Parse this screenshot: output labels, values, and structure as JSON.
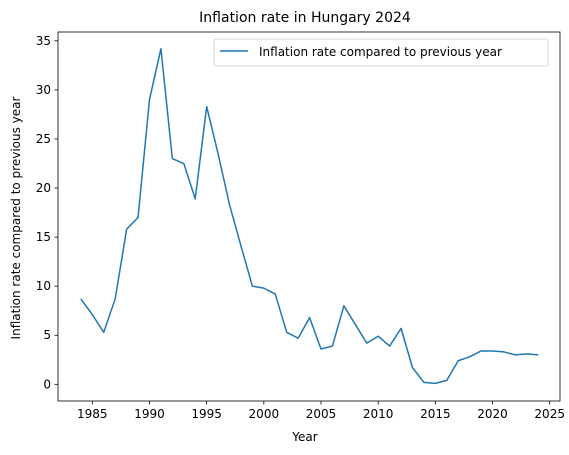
{
  "chart_data": {
    "type": "line",
    "title": "Inflation rate in Hungary 2024",
    "xlabel": "Year",
    "ylabel": "Inflation rate compared to previous year",
    "xlim": [
      1982,
      2025.9
    ],
    "ylim": [
      -1.7,
      35.9
    ],
    "xticks": [
      1985,
      1990,
      1995,
      2000,
      2005,
      2010,
      2015,
      2020,
      2025
    ],
    "yticks": [
      0,
      5,
      10,
      15,
      20,
      25,
      30,
      35
    ],
    "grid": false,
    "legend_position": "upper right",
    "series": [
      {
        "name": "Inflation rate compared to previous year",
        "color": "#1f77b4",
        "x": [
          1984,
          1985,
          1986,
          1987,
          1988,
          1989,
          1990,
          1991,
          1992,
          1993,
          1994,
          1995,
          1996,
          1997,
          1998,
          1999,
          2000,
          2001,
          2002,
          2003,
          2004,
          2005,
          2006,
          2007,
          2008,
          2009,
          2010,
          2011,
          2012,
          2013,
          2014,
          2015,
          2016,
          2017,
          2018,
          2019,
          2020,
          2021,
          2022,
          2023,
          2024
        ],
        "y": [
          8.7,
          7.1,
          5.3,
          8.7,
          15.8,
          17.0,
          29.0,
          34.2,
          23.0,
          22.5,
          18.9,
          28.3,
          23.5,
          18.3,
          14.1,
          10.0,
          9.8,
          9.2,
          5.3,
          4.7,
          6.8,
          3.6,
          3.9,
          8.0,
          6.1,
          4.2,
          4.9,
          3.9,
          5.7,
          1.7,
          0.2,
          0.1,
          0.4,
          2.4,
          2.8,
          3.4,
          3.4,
          3.3,
          3.0,
          3.1,
          3.0
        ]
      }
    ]
  }
}
